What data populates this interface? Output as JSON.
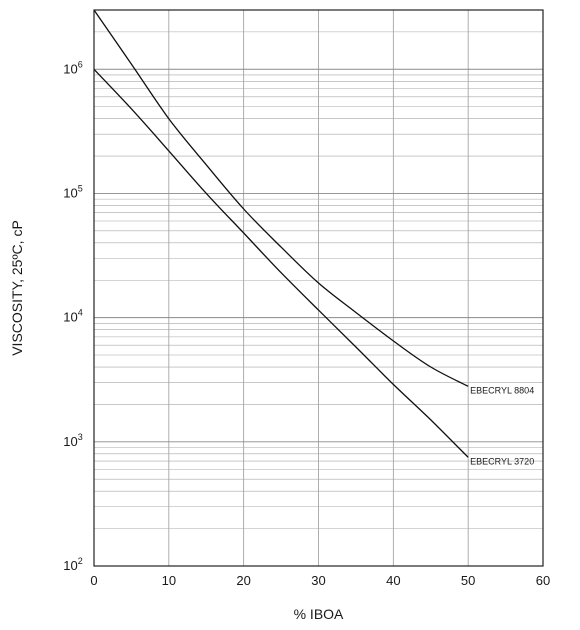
{
  "chart_data": {
    "type": "line",
    "xlabel": "% IBOA",
    "ylabel": "VISCOSITY, 25ºC, cP",
    "xlim": [
      0,
      60
    ],
    "ylim": [
      100,
      3000000
    ],
    "y_scale": "log",
    "grid": true,
    "x_ticks": [
      "0",
      "10",
      "20",
      "30",
      "40",
      "50",
      "60"
    ],
    "y_ticks": [
      {
        "base": "10",
        "exp": "2",
        "value": 100
      },
      {
        "base": "10",
        "exp": "3",
        "value": 1000
      },
      {
        "base": "10",
        "exp": "4",
        "value": 10000
      },
      {
        "base": "10",
        "exp": "5",
        "value": 100000
      },
      {
        "base": "10",
        "exp": "6",
        "value": 1000000
      }
    ],
    "series": [
      {
        "name": "EBECRYL 8804",
        "x": [
          0,
          5,
          10,
          15,
          20,
          25,
          30,
          35,
          40,
          45,
          50
        ],
        "y": [
          3000000,
          1100000,
          400000,
          170000,
          75000,
          37000,
          19000,
          11000,
          6500,
          4000,
          2800
        ]
      },
      {
        "name": "EBECRYL 3720",
        "x": [
          0,
          5,
          10,
          15,
          20,
          25,
          30,
          35,
          40,
          45,
          50
        ],
        "y": [
          1000000,
          480000,
          220000,
          100000,
          48000,
          23000,
          11500,
          5800,
          2900,
          1500,
          750
        ]
      }
    ]
  }
}
